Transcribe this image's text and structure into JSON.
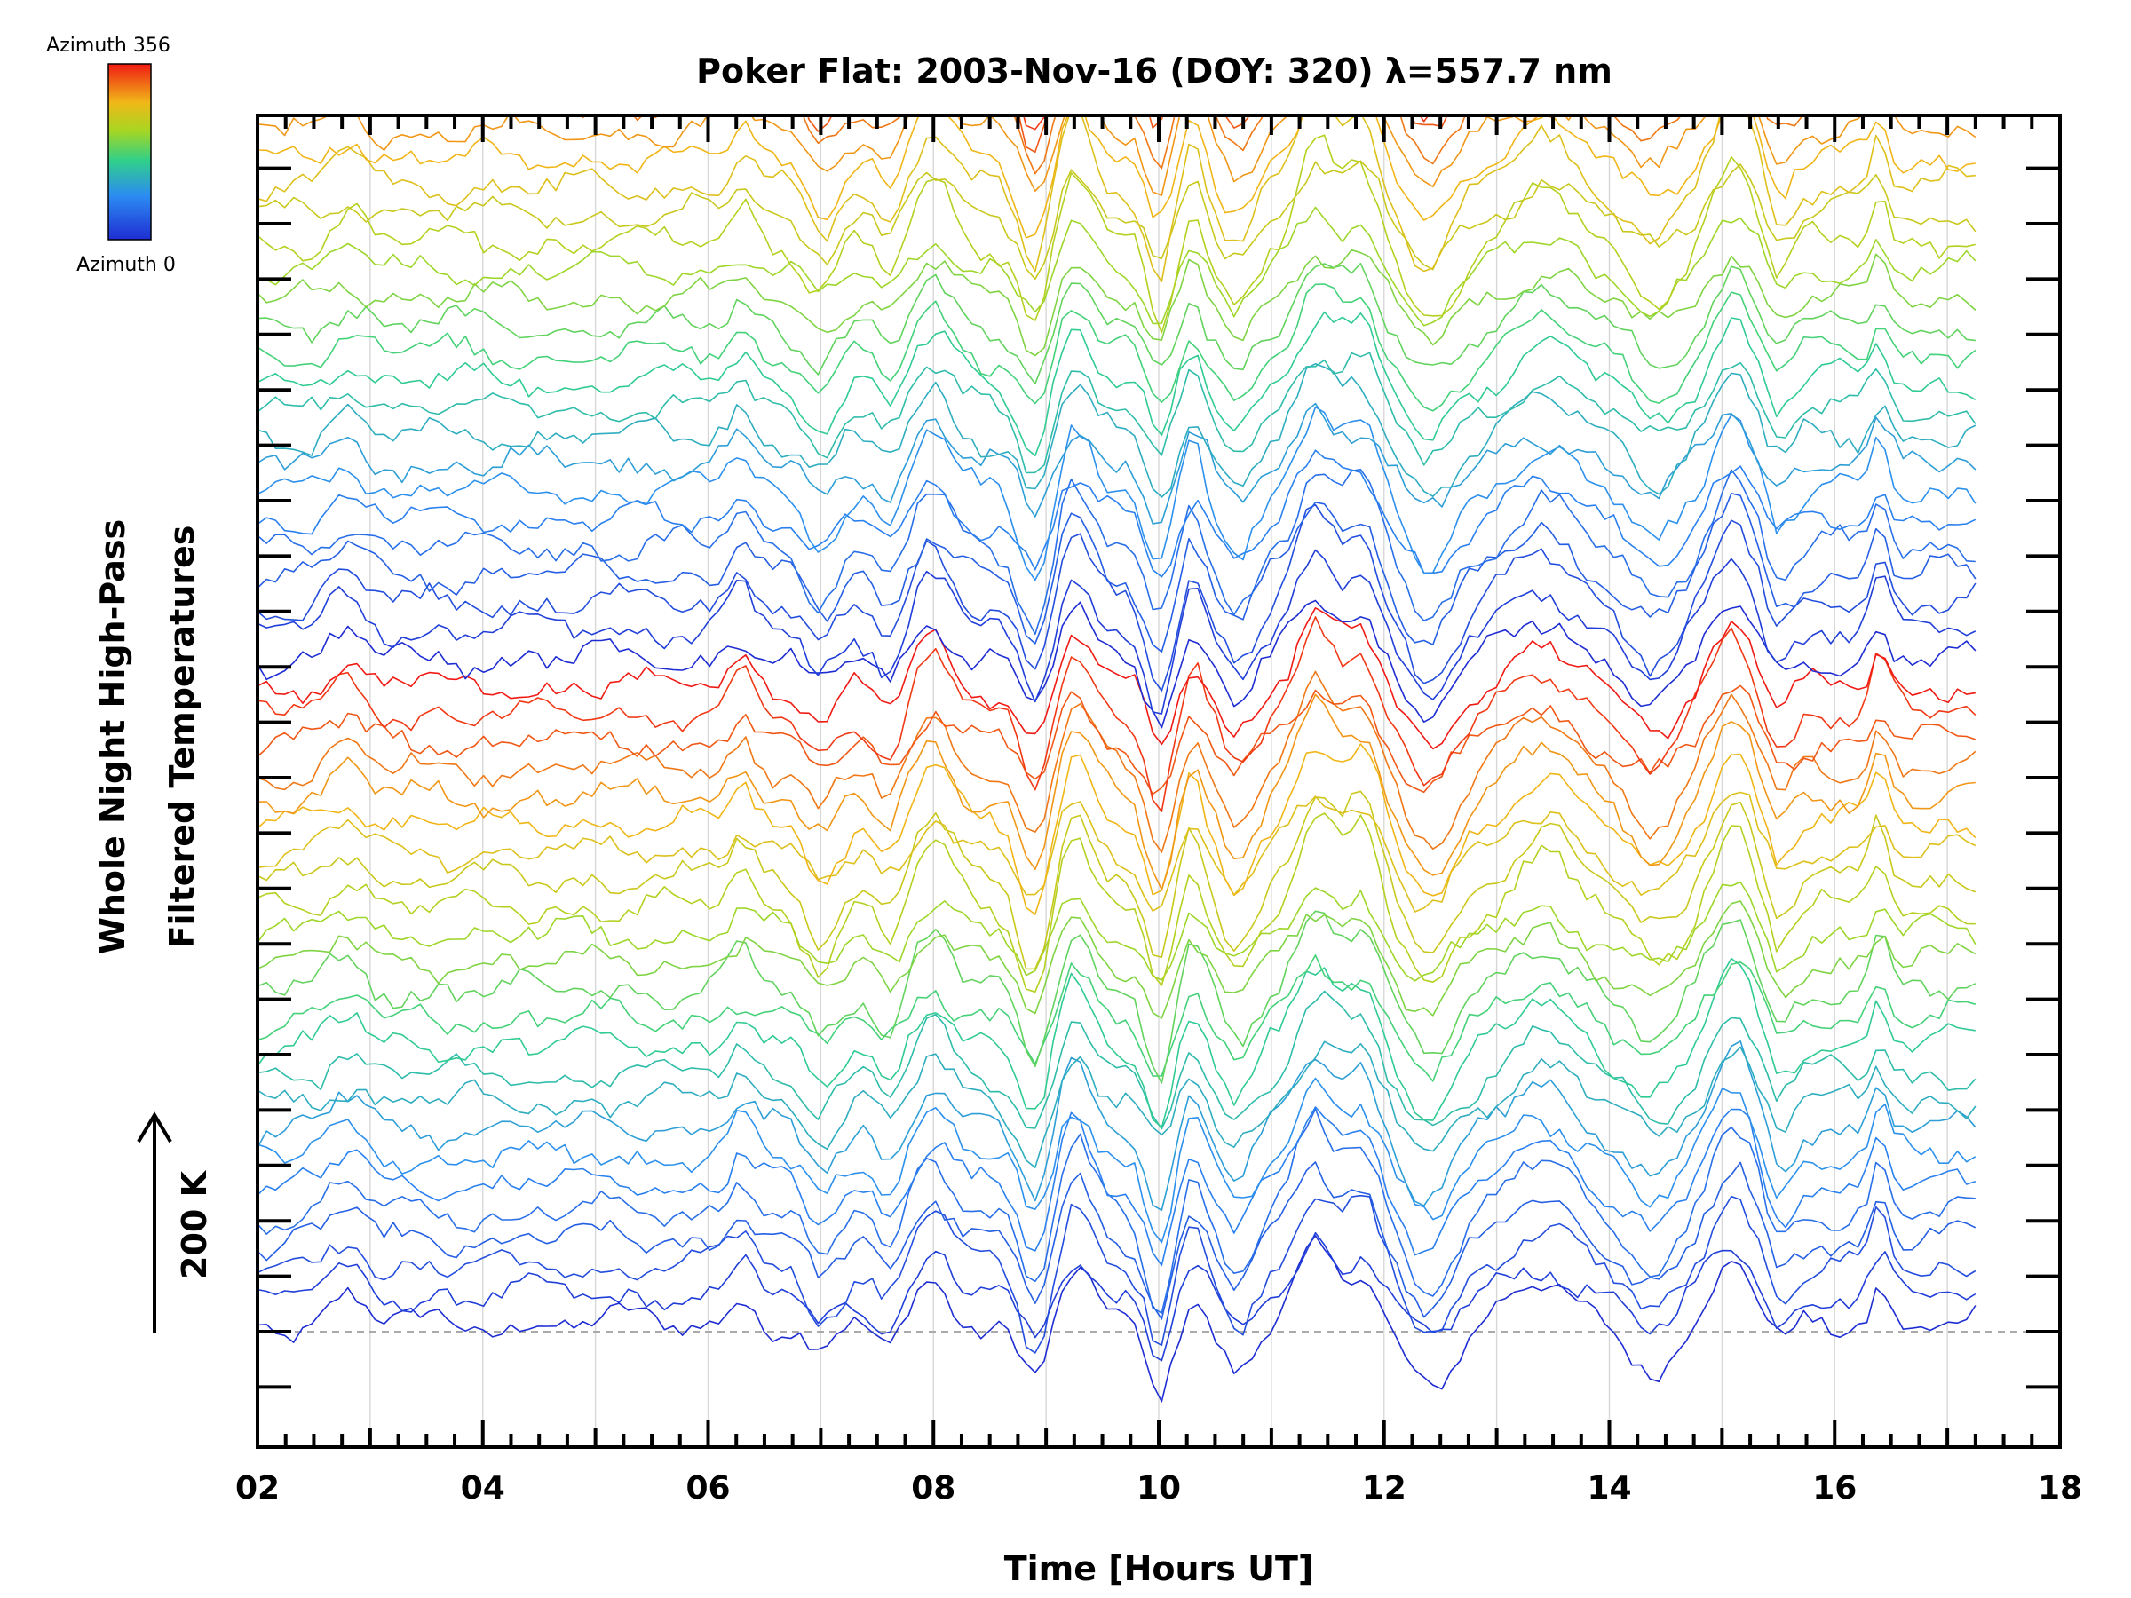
{
  "chart_data": {
    "type": "line",
    "title": "Poker Flat: 2003-Nov-16 (DOY: 320) λ=557.7 nm",
    "xlabel": "Time [Hours UT]",
    "ylabel_line1": "Whole Night High-Pass",
    "ylabel_line2": "Filtered Temperatures",
    "scale_label": "200 K",
    "xlim": [
      2,
      18
    ],
    "x_tick_labels": [
      "02",
      "04",
      "06",
      "08",
      "10",
      "12",
      "14",
      "16",
      "18"
    ],
    "x_ticks": [
      2,
      4,
      6,
      8,
      10,
      12,
      14,
      16,
      18
    ],
    "x_minor_step": 0.25,
    "data_time_range": [
      2.0,
      17.25
    ],
    "y_offset_step_K": 20,
    "y_major_tick_count": 23,
    "n_series": 96,
    "colorbar": {
      "top_label": "Azimuth 356",
      "bottom_label": "Azimuth 0",
      "azimuth_range": [
        0,
        356
      ]
    },
    "grid": "vertical, every hour",
    "baseline": "dashed grey line at lowest offset",
    "colors": {
      "frame": "#000000",
      "grid": "#d8d8d8",
      "baseline": "#aaaaaa"
    },
    "features": [
      {
        "time": 8.0,
        "amplitude_K": 22,
        "width_h": 0.22
      },
      {
        "time": 8.9,
        "amplitude_K": -30,
        "width_h": 0.18
      },
      {
        "time": 9.25,
        "amplitude_K": 25,
        "width_h": 0.2
      },
      {
        "time": 10.0,
        "amplitude_K": -32,
        "width_h": 0.15
      },
      {
        "time": 10.3,
        "amplitude_K": 15,
        "width_h": 0.12
      },
      {
        "time": 10.7,
        "amplitude_K": -22,
        "width_h": 0.2
      },
      {
        "time": 11.4,
        "amplitude_K": 33,
        "width_h": 0.22
      },
      {
        "time": 11.8,
        "amplitude_K": 25,
        "width_h": 0.2
      },
      {
        "time": 12.4,
        "amplitude_K": -28,
        "width_h": 0.3
      },
      {
        "time": 13.4,
        "amplitude_K": 18,
        "width_h": 0.35
      },
      {
        "time": 14.4,
        "amplitude_K": -20,
        "width_h": 0.3
      },
      {
        "time": 15.1,
        "amplitude_K": 30,
        "width_h": 0.25
      },
      {
        "time": 15.5,
        "amplitude_K": -15,
        "width_h": 0.15
      },
      {
        "time": 16.4,
        "amplitude_K": 20,
        "width_h": 0.1
      },
      {
        "time": 6.3,
        "amplitude_K": 14,
        "width_h": 0.15
      },
      {
        "time": 2.8,
        "amplitude_K": 12,
        "width_h": 0.2
      },
      {
        "time": 7.0,
        "amplitude_K": -18,
        "width_h": 0.2
      },
      {
        "time": 7.6,
        "amplitude_K": -14,
        "width_h": 0.15
      }
    ]
  }
}
